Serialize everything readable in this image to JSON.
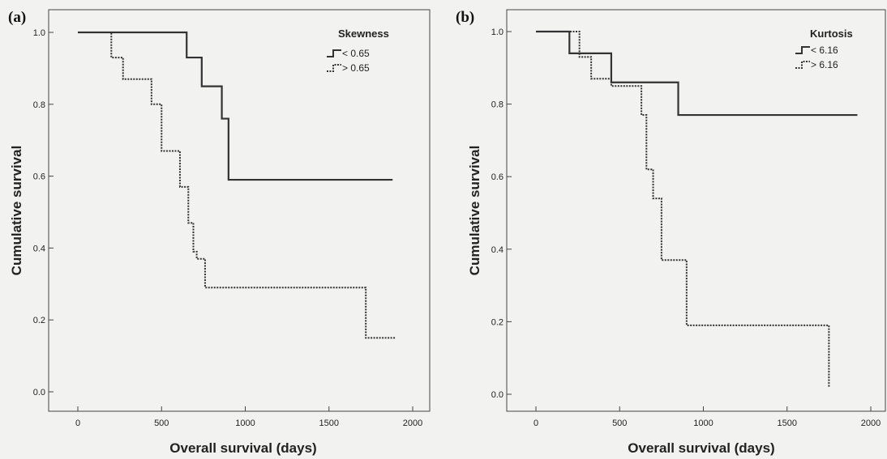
{
  "chart_data": [
    {
      "type": "line",
      "step": true,
      "panel_label": "(a)",
      "xlabel": "Overall survival (days)",
      "ylabel": "Cumulative survival",
      "xlim": [
        0,
        2000
      ],
      "ylim": [
        0,
        1.0
      ],
      "xticks": [
        0,
        500,
        1000,
        1500,
        2000
      ],
      "yticks": [
        "0.0",
        "0.2",
        "0.4",
        "0.6",
        "0.8",
        "1.0"
      ],
      "grid": false,
      "legend": {
        "title": "Skewness",
        "position": "top-right"
      },
      "series": [
        {
          "name": "< 0.65",
          "style": "solid",
          "color": "#333333",
          "x": [
            0,
            650,
            740,
            860,
            900,
            1880
          ],
          "y": [
            1.0,
            0.93,
            0.85,
            0.76,
            0.59,
            0.59
          ]
        },
        {
          "name": "> 0.65",
          "style": "dotted",
          "color": "#333333",
          "x": [
            0,
            200,
            270,
            440,
            500,
            610,
            660,
            690,
            710,
            760,
            1720,
            1900
          ],
          "y": [
            1.0,
            0.93,
            0.87,
            0.8,
            0.67,
            0.57,
            0.47,
            0.39,
            0.37,
            0.29,
            0.15,
            0.15
          ]
        }
      ]
    },
    {
      "type": "line",
      "step": true,
      "panel_label": "(b)",
      "xlabel": "Overall survival (days)",
      "ylabel": "Cumulative survival",
      "xlim": [
        0,
        2000
      ],
      "ylim": [
        0,
        1.0
      ],
      "xticks": [
        0,
        500,
        1000,
        1500,
        2000
      ],
      "yticks": [
        "0.0",
        "0.2",
        "0.4",
        "0.6",
        "0.8",
        "1.0"
      ],
      "grid": false,
      "legend": {
        "title": "Kurtosis",
        "position": "top-right"
      },
      "series": [
        {
          "name": "< 6.16",
          "style": "solid",
          "color": "#333333",
          "x": [
            0,
            200,
            450,
            850,
            1920
          ],
          "y": [
            1.0,
            0.94,
            0.86,
            0.77,
            0.77
          ]
        },
        {
          "name": "> 6.16",
          "style": "dotted",
          "color": "#333333",
          "x": [
            0,
            260,
            330,
            450,
            630,
            660,
            700,
            750,
            900,
            1750
          ],
          "y": [
            1.0,
            0.93,
            0.87,
            0.85,
            0.77,
            0.62,
            0.54,
            0.37,
            0.19,
            0.02
          ]
        }
      ]
    }
  ]
}
